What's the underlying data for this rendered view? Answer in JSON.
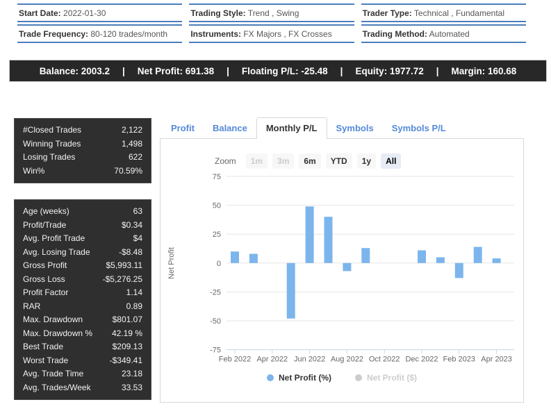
{
  "info_grid": {
    "border_color": "#4a7ebb",
    "cells": [
      {
        "label": "Start Date:",
        "value": "2022-01-30"
      },
      {
        "label": "Trading Style:",
        "value": "Trend , Swing"
      },
      {
        "label": "Trader Type:",
        "value": "Technical , Fundamental"
      },
      {
        "label": "Trade Frequency:",
        "value": "80-120 trades/month"
      },
      {
        "label": "Instruments:",
        "value": "FX Majors , FX Crosses"
      },
      {
        "label": "Trading Method:",
        "value": "Automated"
      }
    ]
  },
  "summary_bar": {
    "background": "#282828",
    "separator": "|",
    "items": [
      {
        "label": "Balance",
        "value": "2003.2"
      },
      {
        "label": "Net Profit",
        "value": "691.38"
      },
      {
        "label": "Floating P/L",
        "value": "-25.48"
      },
      {
        "label": "Equity",
        "value": "1977.72"
      },
      {
        "label": "Margin",
        "value": "160.68"
      }
    ]
  },
  "stats_box_1": {
    "rows": [
      {
        "label": "#Closed Trades",
        "value": "2,122"
      },
      {
        "label": "Winning Trades",
        "value": "1,498"
      },
      {
        "label": "Losing Trades",
        "value": "622"
      },
      {
        "label": "Win%",
        "value": "70.59%"
      }
    ]
  },
  "stats_box_2": {
    "rows": [
      {
        "label": "Age (weeks)",
        "value": "63"
      },
      {
        "label": "Profit/Trade",
        "value": "$0.34"
      },
      {
        "label": "Avg. Profit Trade",
        "value": "$4"
      },
      {
        "label": "Avg. Losing Trade",
        "value": "-$8.48"
      },
      {
        "label": "Gross Profit",
        "value": "$5,993.11"
      },
      {
        "label": "Gross Loss",
        "value": "-$5,276.25"
      },
      {
        "label": "Profit Factor",
        "value": "1.14"
      },
      {
        "label": "RAR",
        "value": "0.89"
      },
      {
        "label": "Max. Drawdown",
        "value": "$801.07"
      },
      {
        "label": "Max. Drawdown %",
        "value": "42.19 %"
      },
      {
        "label": "Best Trade",
        "value": "$209.13"
      },
      {
        "label": "Worst Trade",
        "value": "-$349.41"
      },
      {
        "label": "Avg. Trade Time",
        "value": "23.18"
      },
      {
        "label": "Avg. Trades/Week",
        "value": "33.53"
      }
    ]
  },
  "tabs": [
    {
      "label": "Profit",
      "active": false
    },
    {
      "label": "Balance",
      "active": false
    },
    {
      "label": "Monthly P/L",
      "active": true
    },
    {
      "label": "Symbols",
      "active": false
    },
    {
      "label": "Symbols P/L",
      "active": false
    }
  ],
  "chart": {
    "zoom_label": "Zoom",
    "zoom_buttons": [
      {
        "label": "1m",
        "state": "disabled"
      },
      {
        "label": "3m",
        "state": "disabled"
      },
      {
        "label": "6m",
        "state": "normal"
      },
      {
        "label": "YTD",
        "state": "normal"
      },
      {
        "label": "1y",
        "state": "normal"
      },
      {
        "label": "All",
        "state": "active"
      }
    ],
    "legend": [
      {
        "label": "Net Profit (%)",
        "color": "#7cb5ec",
        "active": true
      },
      {
        "label": "Net Profit ($)",
        "color": "#cccccc",
        "active": false
      }
    ]
  },
  "chart_data": {
    "type": "bar",
    "title": "Monthly P/L",
    "xlabel": "",
    "ylabel": "Net Profit",
    "categories": [
      "Feb 2022",
      "Mar 2022",
      "Apr 2022",
      "May 2022",
      "Jun 2022",
      "Jul 2022",
      "Aug 2022",
      "Sep 2022",
      "Oct 2022",
      "Nov 2022",
      "Dec 2022",
      "Jan 2023",
      "Feb 2023",
      "Mar 2023",
      "Apr 2023"
    ],
    "values": [
      10,
      8,
      0,
      -48,
      49,
      40,
      -7,
      13,
      0,
      0,
      11,
      5,
      -13,
      14,
      4
    ],
    "series_name": "Net Profit (%)",
    "bar_color": "#7cb5ec",
    "ylim": [
      -75,
      75
    ],
    "yticks": [
      75,
      50,
      25,
      0,
      -25,
      -50,
      -75
    ],
    "xtick_labels": [
      "Feb 2022",
      "Apr 2022",
      "Jun 2022",
      "Aug 2022",
      "Oct 2022",
      "Dec 2022",
      "Feb 2023",
      "Apr 2023"
    ],
    "grid": true,
    "grid_color": "#e6e6e6",
    "axis_color": "#ccd6eb",
    "tick_label_color": "#666666",
    "legend_position": "bottom"
  }
}
